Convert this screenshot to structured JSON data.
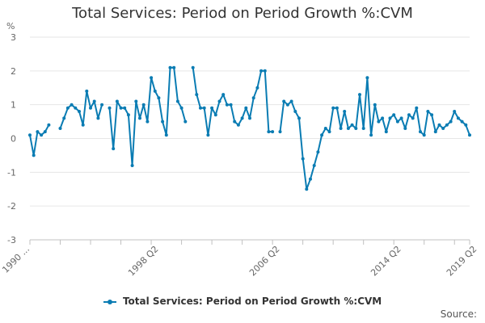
{
  "chart_data": {
    "type": "line",
    "title": "Total Services: Period on Period Growth %:CVM",
    "ylabel": "%",
    "xlabel": "",
    "ylim": [
      -3,
      3
    ],
    "yticks": [
      -3,
      -2,
      -1,
      0,
      1,
      2,
      3
    ],
    "x_tick_labels": [
      {
        "index": 0,
        "label": "1990 ..."
      },
      {
        "index": 34,
        "label": "1998 Q2"
      },
      {
        "index": 66,
        "label": "2006 Q2"
      },
      {
        "index": 98,
        "label": "2014 Q2"
      },
      {
        "index": 118,
        "label": "2019 Q2"
      }
    ],
    "series": [
      {
        "name": "Total Services: Period on Period Growth %:CVM",
        "color": "#0a7cb3",
        "values": [
          0.1,
          -0.5,
          0.2,
          0.1,
          0.2,
          0.4,
          null,
          null,
          0.3,
          0.6,
          0.9,
          1.0,
          0.9,
          0.8,
          0.4,
          1.4,
          0.9,
          1.1,
          0.6,
          1.0,
          null,
          0.9,
          -0.3,
          1.1,
          0.9,
          0.9,
          0.7,
          -0.8,
          1.1,
          0.6,
          1.0,
          0.5,
          1.8,
          1.4,
          1.2,
          0.5,
          0.1,
          2.1,
          2.1,
          1.1,
          0.9,
          0.5,
          null,
          2.1,
          1.3,
          0.9,
          0.9,
          0.1,
          0.9,
          0.7,
          1.1,
          1.3,
          1.0,
          1.0,
          0.5,
          0.4,
          0.6,
          0.9,
          0.6,
          1.2,
          1.5,
          2.0,
          2.0,
          0.2,
          0.2,
          null,
          0.2,
          1.1,
          1.0,
          1.1,
          0.8,
          0.6,
          -0.6,
          -1.5,
          -1.2,
          -0.8,
          -0.4,
          0.1,
          0.3,
          0.2,
          0.9,
          0.9,
          0.3,
          0.8,
          0.3,
          0.4,
          0.3,
          1.3,
          0.3,
          1.8,
          0.1,
          1.0,
          0.5,
          0.6,
          0.2,
          0.6,
          0.7,
          0.5,
          0.6,
          0.3,
          0.7,
          0.6,
          0.9,
          0.2,
          0.1,
          0.8,
          0.7,
          0.2,
          0.4,
          0.3,
          0.4,
          0.5,
          0.8,
          0.6,
          0.5,
          0.4,
          0.1
        ]
      }
    ],
    "legend": "bottom-center"
  },
  "footer": {
    "source_label": "Source:"
  }
}
